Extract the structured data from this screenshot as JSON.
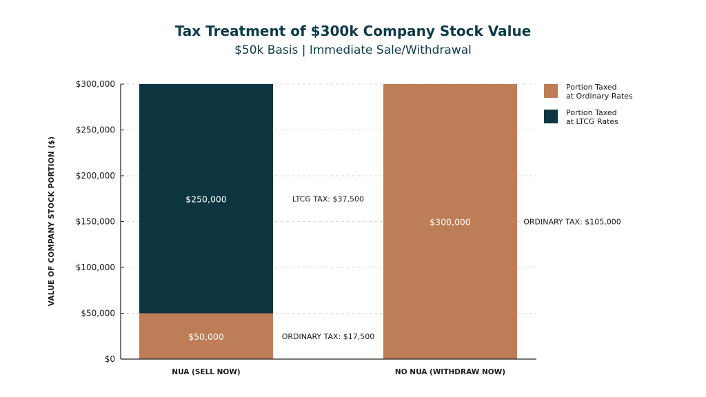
{
  "chart_data": {
    "type": "bar",
    "stacked": true,
    "title": "Tax Treatment of $300k Company Stock Value",
    "subtitle": "$50k Basis | Immediate Sale/Withdrawal",
    "ylabel": "VALUE OF COMPANY STOCK PORTION ($)",
    "ylim": [
      0,
      300000
    ],
    "yticks": [
      0,
      50000,
      100000,
      150000,
      200000,
      250000,
      300000
    ],
    "ytick_labels": [
      "$0",
      "$50,000",
      "$100,000",
      "$150,000",
      "$200,000",
      "$250,000",
      "$300,000"
    ],
    "grid": true,
    "legend_position": "top-right",
    "categories": [
      "NUA (SELL NOW)",
      "NO NUA (WITHDRAW NOW)"
    ],
    "series": [
      {
        "name": "Portion Taxed at Ordinary Rates",
        "legend_lines": [
          "Portion Taxed",
          "at Ordinary Rates"
        ],
        "color": "#bd7d57",
        "values": [
          50000,
          300000
        ],
        "labels": [
          "$50,000",
          "$300,000"
        ]
      },
      {
        "name": "Portion Taxed at LTCG Rates",
        "legend_lines": [
          "Portion Taxed",
          "at LTCG Rates"
        ],
        "color": "#0d3540",
        "values": [
          250000,
          0
        ],
        "labels": [
          "$250,000",
          ""
        ]
      }
    ],
    "annotations": [
      {
        "text": "LTCG TAX: $37,500",
        "category": 0,
        "series": 1
      },
      {
        "text": "ORDINARY TAX: $17,500",
        "category": 0,
        "series": 0
      },
      {
        "text": "ORDINARY TAX: $105,000",
        "category": 1,
        "series": 0
      }
    ]
  }
}
